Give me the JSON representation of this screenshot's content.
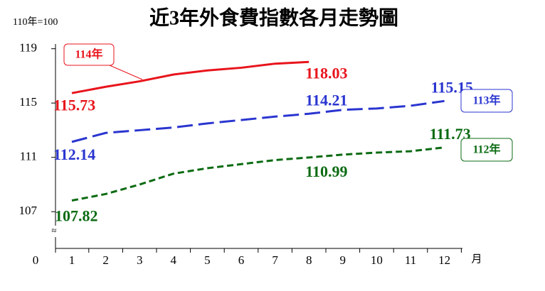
{
  "chart_data": {
    "type": "line",
    "title": "近3年外食費指數各月走勢圖",
    "unit_note": "110年=100",
    "x_unit": "月",
    "y_break_label": "0",
    "axis_break_symbol": "≈",
    "categories": [
      "1",
      "2",
      "3",
      "4",
      "5",
      "6",
      "7",
      "8",
      "9",
      "10",
      "11",
      "12"
    ],
    "ylim": [
      105.6,
      119.4
    ],
    "yticks": [
      107,
      111,
      115,
      119
    ],
    "series": [
      {
        "name": "114年",
        "color": "#e8141c",
        "dash": "solid",
        "values": [
          115.73,
          116.2,
          116.6,
          117.1,
          117.4,
          117.6,
          117.9,
          118.03,
          null,
          null,
          null,
          null
        ],
        "value_labels": [
          "115.73",
          null,
          null,
          null,
          null,
          null,
          null,
          "118.03",
          null,
          null,
          null,
          null
        ]
      },
      {
        "name": "113年",
        "color": "#2a35d0",
        "dash": "long",
        "values": [
          112.14,
          112.8,
          113.0,
          113.2,
          113.5,
          113.75,
          114.0,
          114.21,
          114.5,
          114.6,
          114.8,
          115.15
        ],
        "value_labels": [
          "112.14",
          null,
          null,
          null,
          null,
          null,
          null,
          "114.21",
          null,
          null,
          null,
          "115.15"
        ]
      },
      {
        "name": "112年",
        "color": "#0b6b12",
        "dash": "short",
        "values": [
          107.82,
          108.3,
          109.0,
          109.8,
          110.2,
          110.5,
          110.8,
          110.99,
          111.2,
          111.35,
          111.45,
          111.73
        ],
        "value_labels": [
          "107.82",
          null,
          null,
          null,
          null,
          null,
          null,
          "110.99",
          null,
          null,
          null,
          "111.73"
        ]
      }
    ]
  }
}
